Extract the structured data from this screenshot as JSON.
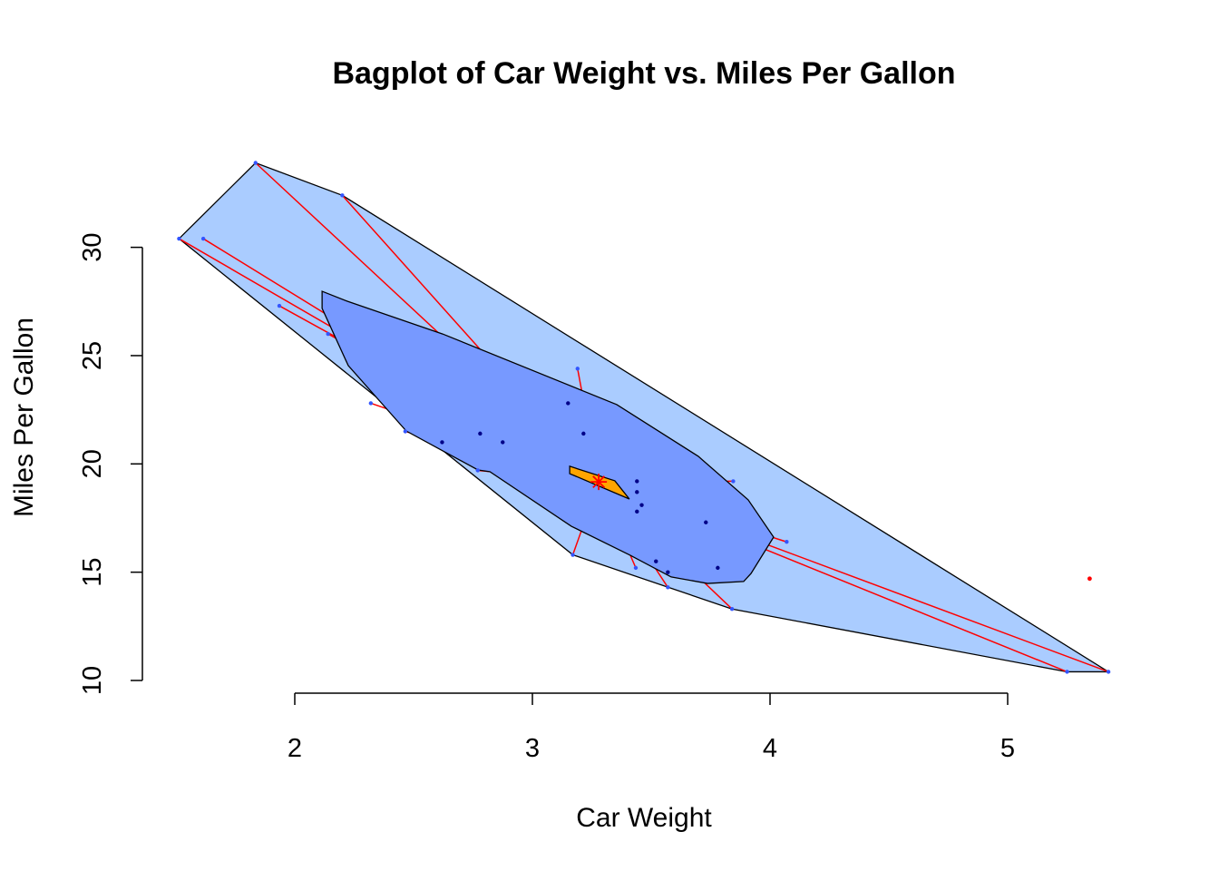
{
  "chart_data": {
    "type": "scatter",
    "subtype": "bagplot",
    "title": "Bagplot of Car Weight vs. Miles Per Gallon",
    "xlabel": "Car Weight",
    "ylabel": "Miles Per Gallon",
    "xlim": [
      1.3,
      5.6
    ],
    "ylim": [
      10,
      34
    ],
    "x_ticks": [
      "2",
      "3",
      "4",
      "5"
    ],
    "y_ticks": [
      "10",
      "15",
      "20",
      "25",
      "30"
    ],
    "grid": false,
    "colors": {
      "loop": "#aaccff",
      "bag": "#7799ff",
      "center": "#ffa500",
      "inside_points": "#000088",
      "outside_points": "#3355ff",
      "outlier": "#ff0000",
      "whiskers": "#ff0000"
    },
    "points": [
      [
        2.62,
        21.0
      ],
      [
        2.875,
        21.0
      ],
      [
        2.32,
        22.8
      ],
      [
        3.215,
        21.4
      ],
      [
        3.44,
        18.7
      ],
      [
        3.46,
        18.1
      ],
      [
        3.57,
        14.3
      ],
      [
        3.19,
        24.4
      ],
      [
        3.15,
        22.8
      ],
      [
        3.44,
        19.2
      ],
      [
        3.44,
        17.8
      ],
      [
        4.07,
        16.4
      ],
      [
        3.73,
        17.3
      ],
      [
        3.78,
        15.2
      ],
      [
        5.25,
        10.4
      ],
      [
        5.424,
        10.4
      ],
      [
        2.2,
        32.4
      ],
      [
        1.615,
        30.4
      ],
      [
        1.835,
        33.9
      ],
      [
        2.465,
        21.5
      ],
      [
        3.52,
        15.5
      ],
      [
        3.435,
        15.2
      ],
      [
        3.84,
        13.3
      ],
      [
        3.845,
        19.2
      ],
      [
        1.935,
        27.3
      ],
      [
        2.14,
        26.0
      ],
      [
        1.513,
        30.4
      ],
      [
        3.17,
        15.8
      ],
      [
        2.77,
        19.7
      ],
      [
        3.57,
        15.0
      ],
      [
        2.78,
        21.4
      ]
    ],
    "outliers": [
      [
        5.345,
        14.7
      ]
    ],
    "median": [
      3.279,
      19.17
    ],
    "loop": [
      [
        1.513,
        30.4
      ],
      [
        1.835,
        33.9
      ],
      [
        2.2,
        32.4
      ],
      [
        5.424,
        10.4
      ],
      [
        5.25,
        10.4
      ],
      [
        3.84,
        13.3
      ],
      [
        3.17,
        15.8
      ]
    ],
    "bag": [
      [
        2.115,
        27.97
      ],
      [
        2.221,
        27.51
      ],
      [
        2.622,
        26.0
      ],
      [
        3.355,
        22.74
      ],
      [
        3.698,
        20.35
      ],
      [
        3.908,
        18.34
      ],
      [
        4.015,
        16.62
      ],
      [
        3.92,
        14.94
      ],
      [
        3.889,
        14.57
      ],
      [
        3.737,
        14.48
      ],
      [
        3.584,
        14.78
      ],
      [
        3.412,
        15.78
      ],
      [
        3.164,
        17.12
      ],
      [
        2.821,
        19.64
      ],
      [
        2.771,
        19.72
      ],
      [
        2.469,
        21.52
      ],
      [
        2.225,
        24.54
      ],
      [
        2.115,
        27.18
      ]
    ],
    "center_region": [
      [
        3.157,
        19.89
      ],
      [
        3.347,
        19.22
      ],
      [
        3.408,
        18.38
      ],
      [
        3.157,
        19.55
      ]
    ]
  }
}
